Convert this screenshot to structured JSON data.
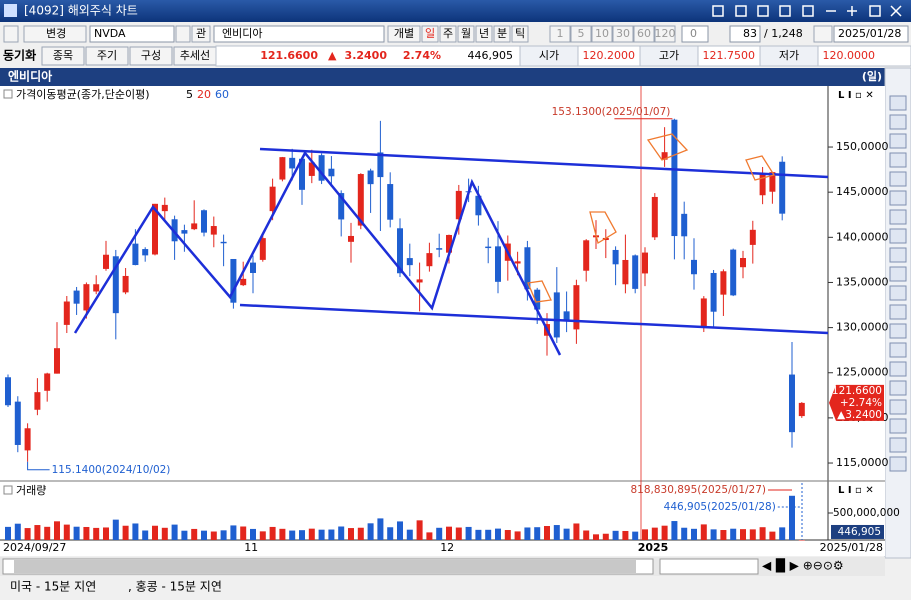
{
  "window": {
    "title": "[4092] 해외주식 차트"
  },
  "toolbar": {
    "change": "변경",
    "symbol": "NVDA",
    "watch": "관",
    "name": "엔비디아",
    "mode": "개별",
    "periods": [
      "일",
      "주",
      "월",
      "년",
      "분",
      "틱"
    ],
    "intervals": [
      "1",
      "5",
      "10",
      "30",
      "60",
      "120"
    ],
    "interval_value": "0",
    "count": "83",
    "total": "/ 1,248",
    "date": "2025/01/28"
  },
  "quote": {
    "sync": "동기화",
    "buttons": [
      "종목",
      "주기",
      "구성",
      "추세선"
    ],
    "price": "121.6600",
    "arrow": "▲",
    "change": "3.2400",
    "change_pct": "2.74%",
    "volume": "446,905",
    "fields": [
      {
        "label": "시가",
        "value": "120.2000"
      },
      {
        "label": "고가",
        "value": "121.7500"
      },
      {
        "label": "저가",
        "value": "120.0000"
      }
    ]
  },
  "status": {
    "us": "미국 - 15분 지연",
    "hk": ", 홍콩 - 15분 지연"
  },
  "chart_data": {
    "type": "candlestick",
    "title": "엔비디아",
    "period": "(일)",
    "legend": {
      "label": "가격이동평균(종가,단순이평)",
      "periods": [
        "5",
        "20",
        "60"
      ]
    },
    "up_color": "#e3261d",
    "down_color": "#1f5fd0",
    "categories": [
      "2024/09/27",
      null,
      null,
      null,
      null,
      null,
      null,
      null,
      null,
      null,
      null,
      null,
      null,
      null,
      null,
      null,
      null,
      null,
      null,
      null,
      null,
      null,
      null,
      null,
      "11",
      null,
      null,
      null,
      null,
      null,
      null,
      null,
      null,
      null,
      null,
      null,
      null,
      null,
      null,
      null,
      null,
      null,
      null,
      null,
      "12",
      null,
      null,
      null,
      null,
      null,
      null,
      null,
      null,
      null,
      null,
      null,
      null,
      null,
      null,
      null,
      null,
      null,
      null,
      null,
      null,
      "2025",
      null,
      null,
      null,
      null,
      null,
      null,
      null,
      null,
      null,
      null,
      null,
      null,
      null,
      null,
      null,
      "2025/01/28"
    ],
    "candles": [
      [
        124.5,
        124.8,
        121.2,
        121.4
      ],
      [
        121.8,
        122.4,
        116.2,
        117.0
      ],
      [
        116.4,
        119.4,
        115.14,
        118.85
      ],
      [
        120.9,
        124.4,
        120.3,
        122.85
      ],
      [
        123.0,
        125.0,
        121.8,
        124.92
      ],
      [
        124.9,
        130.6,
        124.9,
        127.72
      ],
      [
        130.3,
        133.5,
        129.4,
        132.89
      ],
      [
        134.1,
        134.5,
        131.4,
        132.65
      ],
      [
        131.9,
        135.0,
        131.0,
        134.81
      ],
      [
        134.0,
        135.8,
        133.7,
        134.8
      ],
      [
        136.5,
        139.6,
        136.3,
        138.07
      ],
      [
        137.9,
        138.6,
        128.7,
        131.6
      ],
      [
        133.9,
        136.6,
        133.7,
        135.72
      ],
      [
        139.3,
        140.9,
        136.9,
        136.93
      ],
      [
        138.7,
        138.9,
        137.3,
        138.0
      ],
      [
        138.1,
        143.7,
        138.0,
        143.71
      ],
      [
        142.9,
        144.4,
        141.8,
        143.59
      ],
      [
        142.0,
        142.4,
        137.5,
        139.56
      ],
      [
        140.8,
        141.4,
        138.4,
        140.41
      ],
      [
        140.9,
        144.1,
        140.8,
        141.54
      ],
      [
        143.0,
        143.1,
        140.1,
        140.52
      ],
      [
        140.3,
        142.3,
        138.9,
        141.25
      ],
      [
        139.5,
        140.3,
        136.8,
        139.34
      ],
      [
        137.6,
        137.6,
        132.1,
        132.76
      ],
      [
        134.7,
        137.3,
        134.6,
        135.4
      ],
      [
        137.2,
        138.0,
        133.8,
        136.05
      ],
      [
        137.5,
        140.4,
        137.3,
        139.91
      ],
      [
        142.9,
        146.5,
        141.9,
        145.61
      ],
      [
        146.4,
        148.9,
        146.2,
        148.88
      ],
      [
        148.8,
        149.8,
        146.3,
        147.63
      ],
      [
        148.7,
        148.9,
        143.6,
        145.26
      ],
      [
        146.8,
        149.7,
        146.0,
        148.29
      ],
      [
        149.1,
        149.3,
        145.9,
        146.27
      ],
      [
        147.6,
        149.0,
        145.6,
        146.76
      ],
      [
        144.9,
        145.2,
        140.1,
        141.98
      ],
      [
        139.5,
        141.6,
        137.2,
        140.15
      ],
      [
        141.3,
        147.1,
        140.9,
        147.01
      ],
      [
        147.4,
        147.6,
        142.7,
        145.89
      ],
      [
        149.4,
        152.9,
        140.7,
        146.67
      ],
      [
        145.9,
        147.2,
        141.1,
        141.95
      ],
      [
        141.0,
        142.1,
        135.6,
        136.02
      ],
      [
        137.7,
        139.3,
        135.7,
        136.92
      ],
      [
        135.0,
        137.2,
        131.8,
        135.34
      ],
      [
        136.8,
        139.4,
        136.2,
        138.25
      ],
      [
        138.8,
        140.4,
        137.8,
        138.63
      ],
      [
        138.3,
        140.3,
        137.1,
        140.26
      ],
      [
        142.0,
        145.8,
        140.3,
        145.14
      ],
      [
        145.1,
        146.5,
        143.9,
        145.06
      ],
      [
        144.6,
        145.7,
        141.3,
        142.44
      ],
      [
        138.97,
        139.95,
        137.13,
        138.81
      ],
      [
        139.0,
        141.8,
        133.8,
        135.07
      ],
      [
        137.4,
        140.2,
        135.2,
        139.31
      ],
      [
        137.1,
        138.4,
        135.8,
        137.34
      ],
      [
        138.9,
        139.6,
        133.0,
        134.25
      ],
      [
        134.2,
        134.4,
        130.4,
        132.0
      ],
      [
        129.1,
        131.6,
        126.9,
        130.39
      ],
      [
        133.9,
        136.7,
        128.3,
        128.91
      ],
      [
        131.8,
        134.0,
        129.5,
        130.68
      ],
      [
        129.8,
        135.3,
        128.2,
        134.7
      ],
      [
        136.3,
        139.8,
        135.1,
        139.67
      ],
      [
        140.0,
        141.9,
        138.7,
        140.22
      ],
      [
        139.7,
        140.9,
        137.7,
        139.93
      ],
      [
        138.6,
        139.0,
        134.7,
        137.01
      ],
      [
        134.8,
        140.3,
        133.8,
        137.49
      ],
      [
        138.0,
        138.1,
        133.8,
        134.29
      ],
      [
        136.0,
        138.9,
        134.6,
        138.31
      ],
      [
        140.0,
        144.9,
        139.7,
        144.47
      ],
      [
        148.6,
        152.2,
        147.8,
        149.43
      ],
      [
        153.03,
        153.13,
        137.56,
        140.14
      ],
      [
        142.6,
        143.95,
        137.56,
        140.11
      ],
      [
        137.5,
        139.9,
        134.2,
        135.91
      ],
      [
        129.99,
        133.49,
        129.51,
        133.23
      ],
      [
        136.05,
        136.38,
        130.05,
        131.76
      ],
      [
        133.65,
        136.45,
        131.29,
        136.24
      ],
      [
        138.64,
        138.75,
        133.49,
        133.57
      ],
      [
        136.69,
        138.5,
        135.46,
        137.71
      ],
      [
        139.16,
        141.83,
        137.09,
        140.83
      ],
      [
        144.66,
        147.79,
        143.67,
        147.07
      ],
      [
        145.05,
        147.23,
        143.72,
        147.22
      ],
      [
        148.37,
        148.97,
        141.88,
        142.62
      ],
      [
        124.8,
        128.4,
        116.7,
        118.42
      ],
      [
        120.2,
        121.75,
        120.0,
        121.66
      ]
    ],
    "ylim": [
      113.12,
      156.76
    ],
    "yticks": [
      {
        "value": 115,
        "label": "115,0000"
      },
      {
        "value": 120,
        "label": "120,0000"
      },
      {
        "value": 125,
        "label": "125,0000"
      },
      {
        "value": 130,
        "label": "130,0000"
      },
      {
        "value": 135,
        "label": "135,0000"
      },
      {
        "value": 140,
        "label": "140,0000"
      },
      {
        "value": 145,
        "label": "145,0000"
      },
      {
        "value": 150,
        "label": "150,0000"
      }
    ],
    "last_price": {
      "value": 121.66,
      "label": "121.6600",
      "change_pct": "+2.74%",
      "change": "▲3.2400"
    },
    "annotations": [
      {
        "value": 153.13,
        "label": "153.1300(2025/01/07)"
      },
      {
        "value": 115.14,
        "label": "115.1400(2024/10/02)"
      }
    ],
    "volume": {
      "title": "거래량",
      "values": [
        243000000,
        302000000,
        221000000,
        277000000,
        244000000,
        346000000,
        285000000,
        246000000,
        241000000,
        224000000,
        232000000,
        377000000,
        264000000,
        306000000,
        176000000,
        264000000,
        226000000,
        285000000,
        172000000,
        205000000,
        173000000,
        157000000,
        179000000,
        270000000,
        250000000,
        205000000,
        160000000,
        242000000,
        207000000,
        175000000,
        182000000,
        210000000,
        191000000,
        194000000,
        250000000,
        221000000,
        227000000,
        309000000,
        400000000,
        236000000,
        344000000,
        191000000,
        364000000,
        141000000,
        226000000,
        247000000,
        231000000,
        242000000,
        188000000,
        189000000,
        211000000,
        185000000,
        159000000,
        232000000,
        237000000,
        259000000,
        277000000,
        210000000,
        306000000,
        176000000,
        105000000,
        116000000,
        170000000,
        167000000,
        155000000,
        197000000,
        229000000,
        265000000,
        351000000,
        227000000,
        207000000,
        289000000,
        197000000,
        185000000,
        209000000,
        201000000,
        197000000,
        237000000,
        155000000,
        234000000,
        818830895,
        446905
      ],
      "ylim": [
        0,
        1074000000
      ],
      "yticks": [
        {
          "value": 500000000,
          "label": "500,000,000"
        }
      ],
      "last": {
        "value": 446905,
        "label": "446,905"
      },
      "annotations": [
        {
          "value": 818830895,
          "label": "818,830,895(2025/01/27)"
        },
        {
          "value": 446905,
          "label": "446,905(2025/01/28)"
        }
      ]
    }
  }
}
